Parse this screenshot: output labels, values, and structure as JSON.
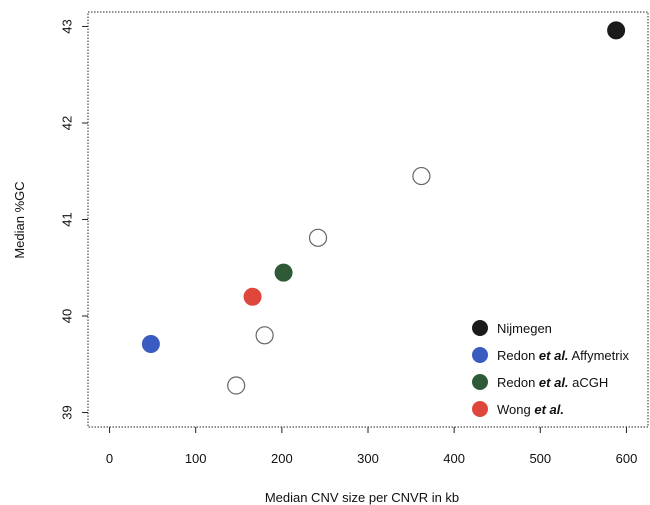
{
  "chart_data": {
    "type": "scatter",
    "title": "",
    "xlabel": "Median CNV size per CNVR in kb",
    "ylabel": "Median %GC",
    "xlim": [
      -25,
      625
    ],
    "ylim": [
      38.85,
      43.15
    ],
    "xticks": [
      0,
      100,
      200,
      300,
      400,
      500,
      600
    ],
    "yticks": [
      39,
      40,
      41,
      42,
      43
    ],
    "grid": false,
    "legend_position": "bottom-right",
    "points": [
      {
        "x": 588,
        "y": 42.96,
        "series": "Nijmegen",
        "color": "#1a1a1a",
        "filled": true
      },
      {
        "x": 48,
        "y": 39.71,
        "series": "Redon et al. Affymetrix",
        "color": "#3a5bbf",
        "filled": true
      },
      {
        "x": 202,
        "y": 40.45,
        "series": "Redon et al. aCGH",
        "color": "#2f5a37",
        "filled": true
      },
      {
        "x": 166,
        "y": 40.2,
        "series": "Wong et al.",
        "color": "#e0473c",
        "filled": true
      },
      {
        "x": 362,
        "y": 41.45,
        "series": "",
        "color": "#555555",
        "filled": false
      },
      {
        "x": 242,
        "y": 40.81,
        "series": "",
        "color": "#555555",
        "filled": false
      },
      {
        "x": 180,
        "y": 39.8,
        "series": "",
        "color": "#555555",
        "filled": false
      },
      {
        "x": 147,
        "y": 39.28,
        "series": "",
        "color": "#555555",
        "filled": false
      }
    ],
    "legend": [
      {
        "parts": [
          {
            "text": "Nijmegen",
            "italic": false
          }
        ],
        "color": "#1a1a1a"
      },
      {
        "parts": [
          {
            "text": "Redon ",
            "italic": false
          },
          {
            "text": "et al.",
            "italic": true
          },
          {
            "text": " Affymetrix",
            "italic": false
          }
        ],
        "color": "#3a5bbf"
      },
      {
        "parts": [
          {
            "text": "Redon ",
            "italic": false
          },
          {
            "text": "et al.",
            "italic": true
          },
          {
            "text": " aCGH",
            "italic": false
          }
        ],
        "color": "#2f5a37"
      },
      {
        "parts": [
          {
            "text": "Wong ",
            "italic": false
          },
          {
            "text": "et al.",
            "italic": true
          }
        ],
        "color": "#e0473c"
      }
    ]
  }
}
